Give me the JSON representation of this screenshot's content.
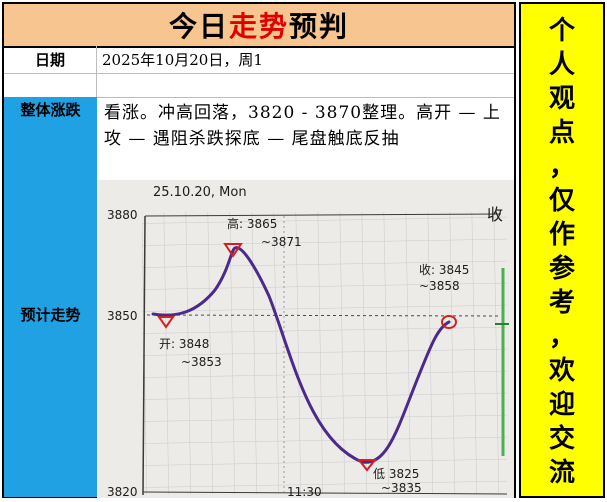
{
  "title": {
    "part1": "今日",
    "part2": "走势",
    "part3": "预判"
  },
  "date_row": {
    "label": "日期",
    "value": "2025年10月20日，周1"
  },
  "overall": {
    "label": "整体涨跌",
    "text": "看涨。冲高回落，3820 - 3870整理。高开 — 上攻 — 遇阻杀跌探底 — 尾盘触底反抽"
  },
  "forecast": {
    "label": "预计走势"
  },
  "sidebar_text": [
    "个",
    "人",
    "观",
    "点",
    "，",
    "仅",
    "作",
    "参",
    "考",
    "，",
    "欢",
    "迎",
    "交",
    "流"
  ],
  "sketch": {
    "header": "25.10.20, Mon",
    "y_top": "3880",
    "y_mid": "3850",
    "y_bottom": "3820",
    "x_mid": "11:30",
    "corner_mark": "收",
    "open_label": "开: 3848",
    "open_range": "~3853",
    "high_label": "高: 3865",
    "high_range": "~3871",
    "low_label": "低 3825",
    "low_range": "~3835",
    "close_label": "收: 3845",
    "close_range": "~3858"
  },
  "colors": {
    "title_bg": "#f7c58f",
    "accent_red": "#e00000",
    "label_blue": "#1fa1e3",
    "sidebar_yellow": "#ffff00",
    "ink": "#4b2a8c",
    "marker_red": "#d42020"
  }
}
